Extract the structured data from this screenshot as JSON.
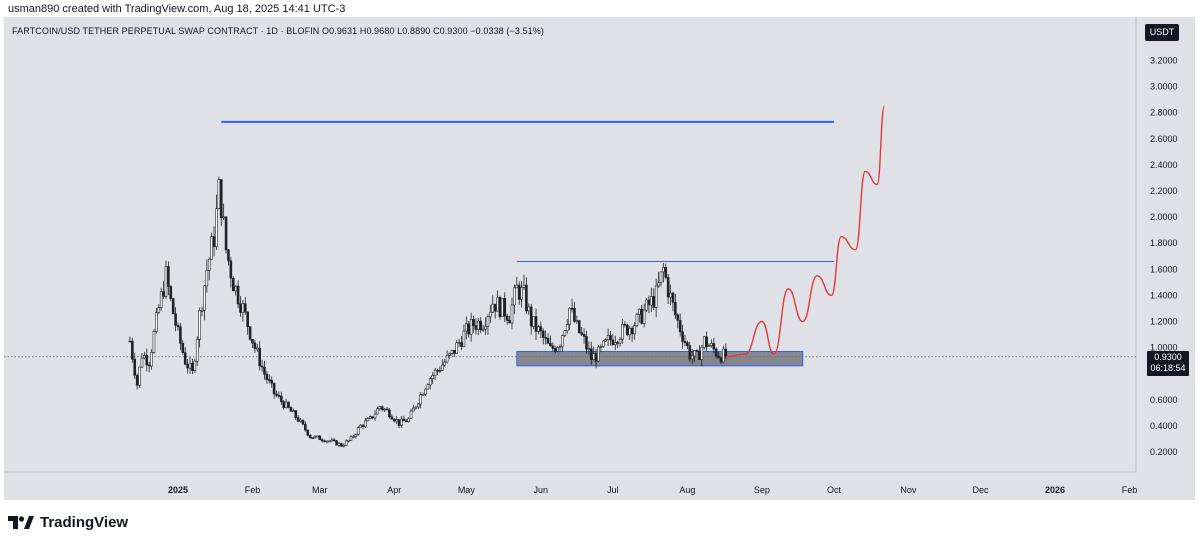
{
  "header": {
    "created_line": "usman890 created with TradingView.com, Aug 18, 2025 14:41 UTC-3"
  },
  "legend": {
    "symbol_line": "FARTCOIN/USD TETHER PERPETUAL SWAP CONTRACT · 1D · BLOFIN  O0.9631  H0.9680  L0.8890  C0.9300  −0.0338 (−3.51%)"
  },
  "price_scale": {
    "currency": "USDT",
    "current_price": "0.9300",
    "countdown": "06:18:54"
  },
  "footer": {
    "brand": "TradingView"
  },
  "colors": {
    "background": "#dfe1e7",
    "candle": "#1f2326",
    "blue_line": "#2962ff",
    "thin_blue_line": "#2962ff",
    "zone_fill": "#6f7178",
    "projection": "#e53935"
  },
  "chart_data": {
    "type": "candlestick",
    "price_axis": {
      "ticks": [
        "3.2000",
        "3.0000",
        "2.8000",
        "2.6000",
        "2.4000",
        "2.2000",
        "2.0000",
        "1.8000",
        "1.6000",
        "1.4000",
        "1.2000",
        "1.0000",
        "0.6000",
        "0.4000",
        "0.2000"
      ],
      "range": [
        0.0,
        3.35
      ]
    },
    "time_axis": {
      "ticks": [
        {
          "label": "2025",
          "date": "2025-01-01",
          "bold": true
        },
        {
          "label": "Feb",
          "date": "2025-02-01"
        },
        {
          "label": "Mar",
          "date": "2025-03-01"
        },
        {
          "label": "Apr",
          "date": "2025-04-01"
        },
        {
          "label": "May",
          "date": "2025-05-01"
        },
        {
          "label": "Jun",
          "date": "2025-06-01"
        },
        {
          "label": "Jul",
          "date": "2025-07-01"
        },
        {
          "label": "Aug",
          "date": "2025-08-01"
        },
        {
          "label": "Sep",
          "date": "2025-09-01"
        },
        {
          "label": "Oct",
          "date": "2025-10-01"
        },
        {
          "label": "Nov",
          "date": "2025-11-01"
        },
        {
          "label": "Dec",
          "date": "2025-12-01"
        },
        {
          "label": "2026",
          "date": "2026-01-01",
          "bold": true
        },
        {
          "label": "Feb",
          "date": "2026-02-01"
        }
      ]
    },
    "close_path": [
      [
        "2024-12-12",
        1.05
      ],
      [
        "2024-12-15",
        0.72
      ],
      [
        "2024-12-17",
        0.95
      ],
      [
        "2024-12-20",
        0.9
      ],
      [
        "2024-12-24",
        1.3
      ],
      [
        "2024-12-27",
        1.55
      ],
      [
        "2024-12-29",
        1.35
      ],
      [
        "2025-01-01",
        1.1
      ],
      [
        "2025-01-04",
        0.9
      ],
      [
        "2025-01-07",
        0.8
      ],
      [
        "2025-01-10",
        1.25
      ],
      [
        "2025-01-13",
        1.6
      ],
      [
        "2025-01-16",
        1.85
      ],
      [
        "2025-01-18",
        2.2
      ],
      [
        "2025-01-19",
        2.1
      ],
      [
        "2025-01-21",
        1.75
      ],
      [
        "2025-01-24",
        1.5
      ],
      [
        "2025-01-28",
        1.3
      ],
      [
        "2025-02-02",
        1.0
      ],
      [
        "2025-02-06",
        0.8
      ],
      [
        "2025-02-10",
        0.65
      ],
      [
        "2025-02-15",
        0.55
      ],
      [
        "2025-02-20",
        0.45
      ],
      [
        "2025-02-25",
        0.32
      ],
      [
        "2025-03-02",
        0.3
      ],
      [
        "2025-03-06",
        0.28
      ],
      [
        "2025-03-10",
        0.25
      ],
      [
        "2025-03-14",
        0.3
      ],
      [
        "2025-03-18",
        0.4
      ],
      [
        "2025-03-22",
        0.45
      ],
      [
        "2025-03-26",
        0.55
      ],
      [
        "2025-03-30",
        0.5
      ],
      [
        "2025-04-03",
        0.42
      ],
      [
        "2025-04-07",
        0.45
      ],
      [
        "2025-04-11",
        0.6
      ],
      [
        "2025-04-15",
        0.75
      ],
      [
        "2025-04-20",
        0.85
      ],
      [
        "2025-04-25",
        0.95
      ],
      [
        "2025-04-30",
        1.1
      ],
      [
        "2025-05-04",
        1.18
      ],
      [
        "2025-05-08",
        1.2
      ],
      [
        "2025-05-12",
        1.35
      ],
      [
        "2025-05-16",
        1.3
      ],
      [
        "2025-05-19",
        1.25
      ],
      [
        "2025-05-22",
        1.45
      ],
      [
        "2025-05-25",
        1.4
      ],
      [
        "2025-05-28",
        1.2
      ],
      [
        "2025-06-01",
        1.1
      ],
      [
        "2025-06-05",
        0.98
      ],
      [
        "2025-06-09",
        1.05
      ],
      [
        "2025-06-13",
        1.3
      ],
      [
        "2025-06-16",
        1.15
      ],
      [
        "2025-06-19",
        1.05
      ],
      [
        "2025-06-22",
        0.92
      ],
      [
        "2025-06-25",
        0.95
      ],
      [
        "2025-06-29",
        1.05
      ],
      [
        "2025-07-03",
        1.1
      ],
      [
        "2025-07-07",
        1.15
      ],
      [
        "2025-07-11",
        1.2
      ],
      [
        "2025-07-15",
        1.3
      ],
      [
        "2025-07-19",
        1.4
      ],
      [
        "2025-07-22",
        1.6
      ],
      [
        "2025-07-24",
        1.45
      ],
      [
        "2025-07-27",
        1.25
      ],
      [
        "2025-07-30",
        1.1
      ],
      [
        "2025-08-02",
        0.95
      ],
      [
        "2025-08-05",
        0.92
      ],
      [
        "2025-08-08",
        1.05
      ],
      [
        "2025-08-11",
        1.0
      ],
      [
        "2025-08-14",
        0.95
      ],
      [
        "2025-08-17",
        0.93
      ]
    ],
    "annotations": {
      "ath_line": {
        "price": 2.73,
        "from": "2025-01-19",
        "to": "2025-10-01"
      },
      "range_high_line": {
        "price": 1.66,
        "from": "2025-05-22",
        "to": "2025-10-01"
      },
      "support_zone": {
        "price_low": 0.86,
        "price_high": 0.97,
        "from": "2025-05-22",
        "to": "2025-09-18"
      },
      "current_price_line": 0.93,
      "projection": [
        [
          "2025-08-17",
          0.93
        ],
        [
          "2025-08-25",
          0.95
        ],
        [
          "2025-09-01",
          1.2
        ],
        [
          "2025-09-06",
          0.95
        ],
        [
          "2025-09-12",
          1.45
        ],
        [
          "2025-09-18",
          1.2
        ],
        [
          "2025-09-24",
          1.55
        ],
        [
          "2025-09-30",
          1.4
        ],
        [
          "2025-10-04",
          1.85
        ],
        [
          "2025-10-10",
          1.75
        ],
        [
          "2025-10-14",
          2.35
        ],
        [
          "2025-10-19",
          2.25
        ],
        [
          "2025-10-22",
          2.85
        ]
      ]
    }
  }
}
